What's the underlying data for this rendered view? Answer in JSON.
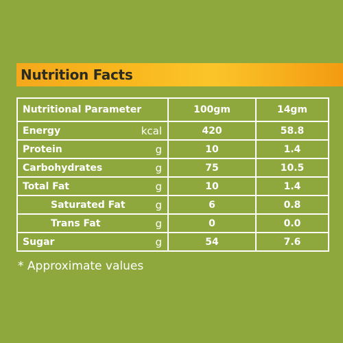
{
  "title": "Nutrition Facts",
  "table": {
    "header": {
      "parameter": "Nutritional Parameter",
      "col1": "100gm",
      "col2": "14gm"
    },
    "rows": [
      {
        "name": "Energy",
        "unit": "kcal",
        "v1": "420",
        "v2": "58.8"
      },
      {
        "name": "Protein",
        "unit": "g",
        "v1": "10",
        "v2": "1.4"
      },
      {
        "name": "Carbohydrates",
        "unit": "g",
        "v1": "75",
        "v2": "10.5"
      },
      {
        "name": "Total Fat",
        "unit": "g",
        "v1": "10",
        "v2": "1.4"
      },
      {
        "name": "Saturated Fat",
        "unit": "g",
        "v1": "6",
        "v2": "0.8"
      },
      {
        "name": "Trans Fat",
        "unit": "g",
        "v1": "0",
        "v2": "0.0"
      },
      {
        "name": "Sugar",
        "unit": "g",
        "v1": "54",
        "v2": "7.6"
      }
    ]
  },
  "footnote": "* Approximate values",
  "colors": {
    "background": "#8fa83e",
    "header_band": "#f8b81e",
    "text": "#ffffff"
  }
}
